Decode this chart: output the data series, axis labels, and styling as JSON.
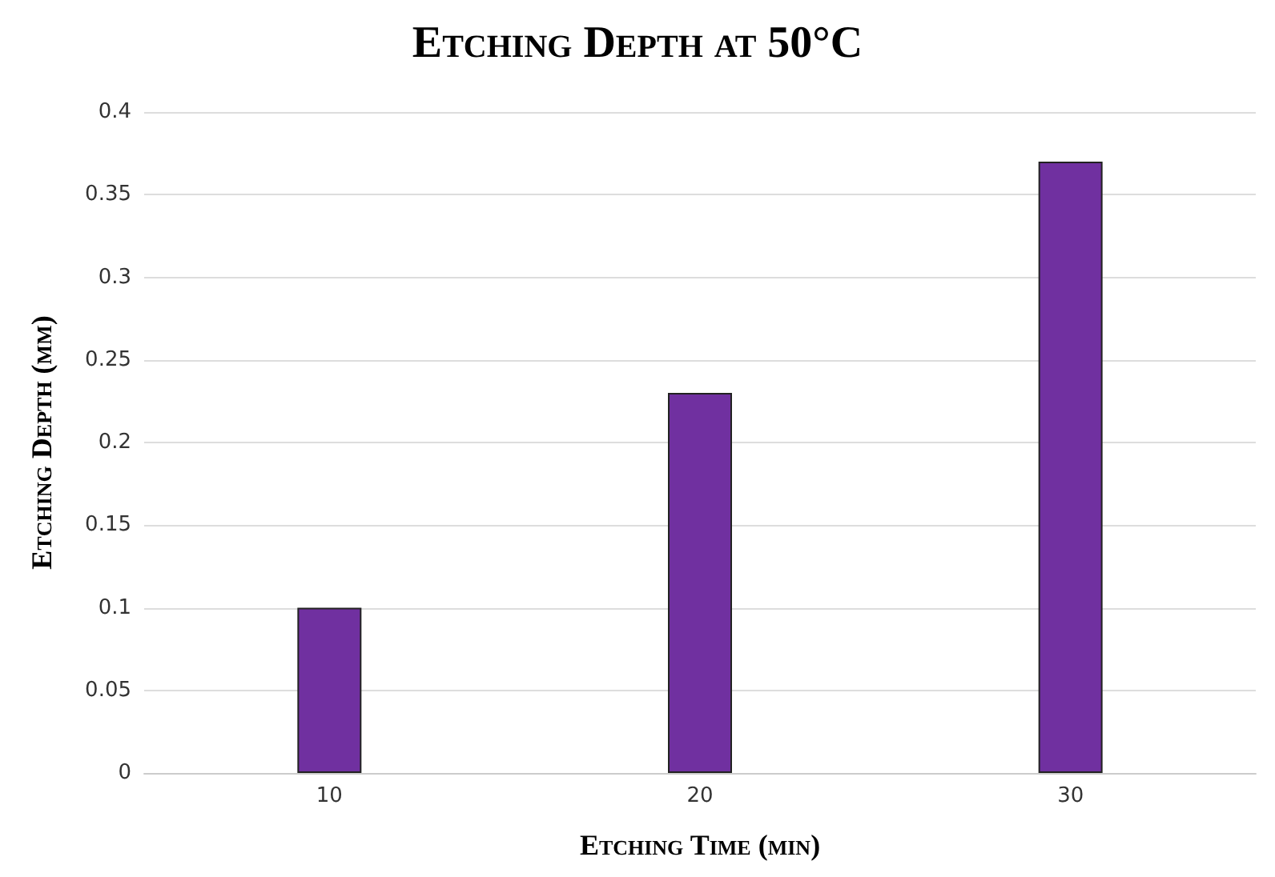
{
  "chart_data": {
    "type": "bar",
    "title": "Etching Depth at 50°C",
    "xlabel": "Etching Time (min)",
    "ylabel": "Etching Depth (mm)",
    "categories": [
      "10",
      "20",
      "30"
    ],
    "values": [
      0.1,
      0.23,
      0.37
    ],
    "color": "#7030a0",
    "ylim": [
      0,
      0.4
    ],
    "yticks": [
      0,
      0.05,
      0.1,
      0.15,
      0.2,
      0.25,
      0.3,
      0.35,
      0.4
    ],
    "grid": "y"
  }
}
